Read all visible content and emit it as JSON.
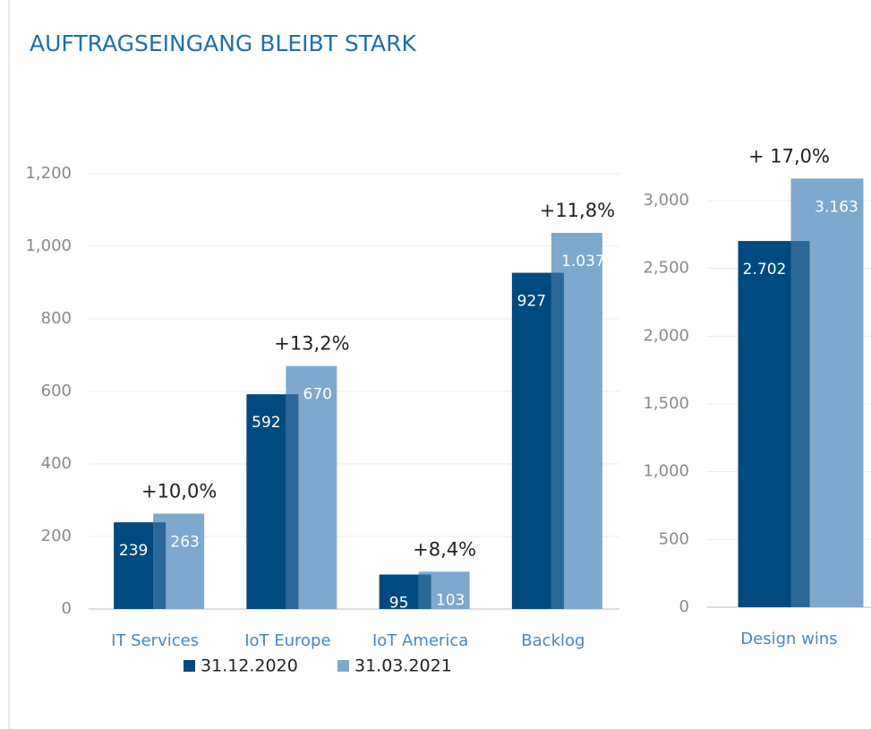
{
  "chart_data": [
    {
      "type": "bar",
      "title": "AUFTRAGSEINGANG BLEIBT STARK",
      "categories": [
        "IT Services",
        "IoT Europe",
        "IoT America",
        "Backlog"
      ],
      "series": [
        {
          "name": "31.12.2020",
          "color": "#004a7f",
          "values": [
            239,
            592,
            95,
            927
          ]
        },
        {
          "name": "31.03.2021",
          "color": "#7fa9cc",
          "values": [
            263,
            670,
            103,
            1037
          ],
          "value_labels": [
            "263",
            "670",
            "103",
            "1.037"
          ]
        }
      ],
      "annotations": [
        "+10,0%",
        "+13,2%",
        "+8,4%",
        "+11,8%"
      ],
      "ylim": [
        0,
        1200
      ],
      "yticks": [
        0,
        200,
        400,
        600,
        800,
        {
          "value": 1000,
          "label": "1,000"
        },
        {
          "value": 1200,
          "label": "1,200"
        }
      ],
      "grid": true,
      "legend": "bottom"
    },
    {
      "type": "bar",
      "categories": [
        "Design wins"
      ],
      "series": [
        {
          "color": "#004a7f",
          "values": [
            2702
          ],
          "value_labels": [
            "2.702"
          ]
        },
        {
          "color": "#7fa9cc",
          "values": [
            3163
          ],
          "value_labels": [
            "3.163"
          ]
        }
      ],
      "annotations": [
        "+ 17,0%"
      ],
      "ylim": [
        0,
        3000
      ],
      "yticks": [
        0,
        500,
        {
          "value": 1000,
          "label": "1,000"
        },
        {
          "value": 1500,
          "label": "1,500"
        },
        {
          "value": 2000,
          "label": "2,000"
        },
        {
          "value": 2500,
          "label": "2,500"
        },
        {
          "value": 3000,
          "label": "3,000"
        }
      ],
      "grid": true
    }
  ]
}
